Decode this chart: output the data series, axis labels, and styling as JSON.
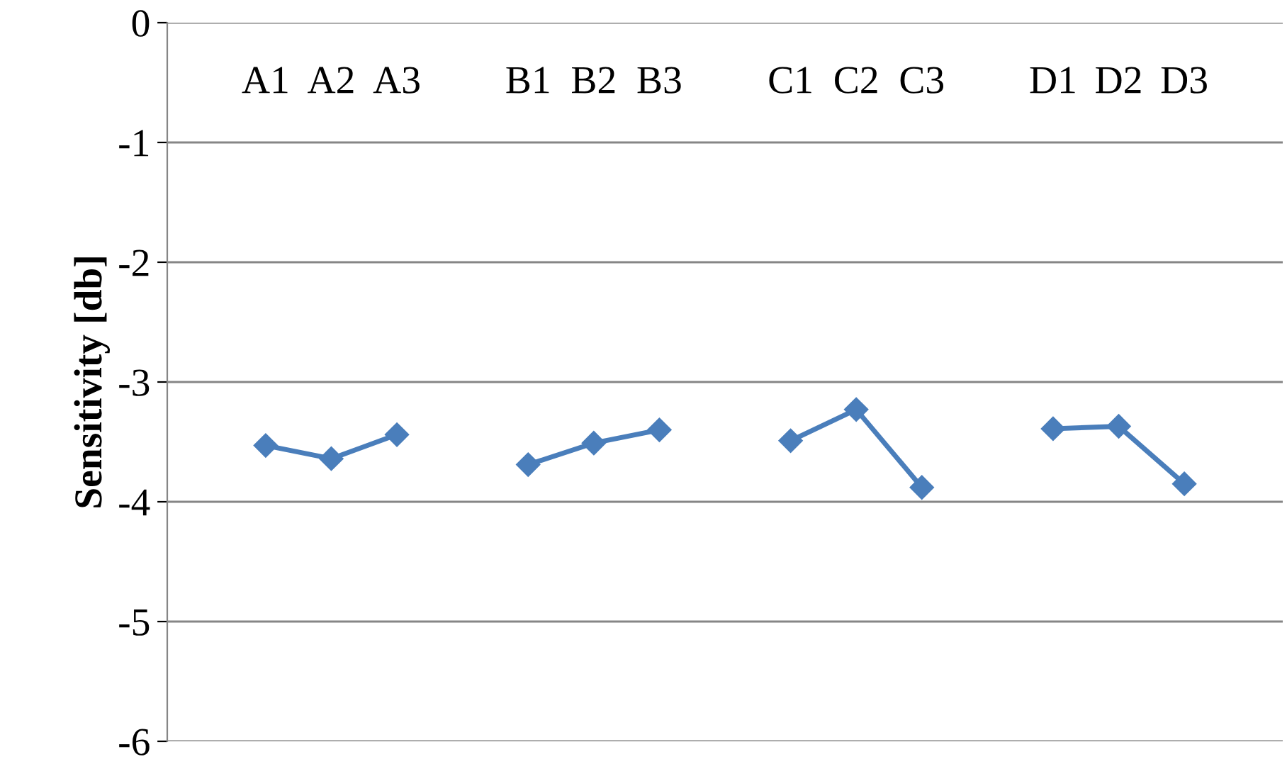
{
  "chart_data": {
    "type": "line",
    "ylabel": "Sensitivity [db]",
    "categories": [
      null,
      "A1",
      "A2",
      "A3",
      null,
      "B1",
      "B2",
      "B3",
      null,
      "C1",
      "C2",
      "C3",
      null,
      "D1",
      "D2",
      "D3",
      null
    ],
    "series": [
      {
        "color": "#4a7ebb",
        "values": [
          null,
          -3.53,
          -3.64,
          -3.44,
          null,
          -3.69,
          -3.51,
          -3.4,
          null,
          -3.49,
          -3.23,
          -3.88,
          null,
          -3.39,
          -3.37,
          -3.85,
          null
        ]
      }
    ],
    "ylim": [
      -6,
      0
    ],
    "yticks": [
      -6,
      -5,
      -4,
      -3,
      -2,
      -1,
      0
    ],
    "grid": "y",
    "marker": "diamond",
    "line_style": "solid",
    "legend": false
  }
}
